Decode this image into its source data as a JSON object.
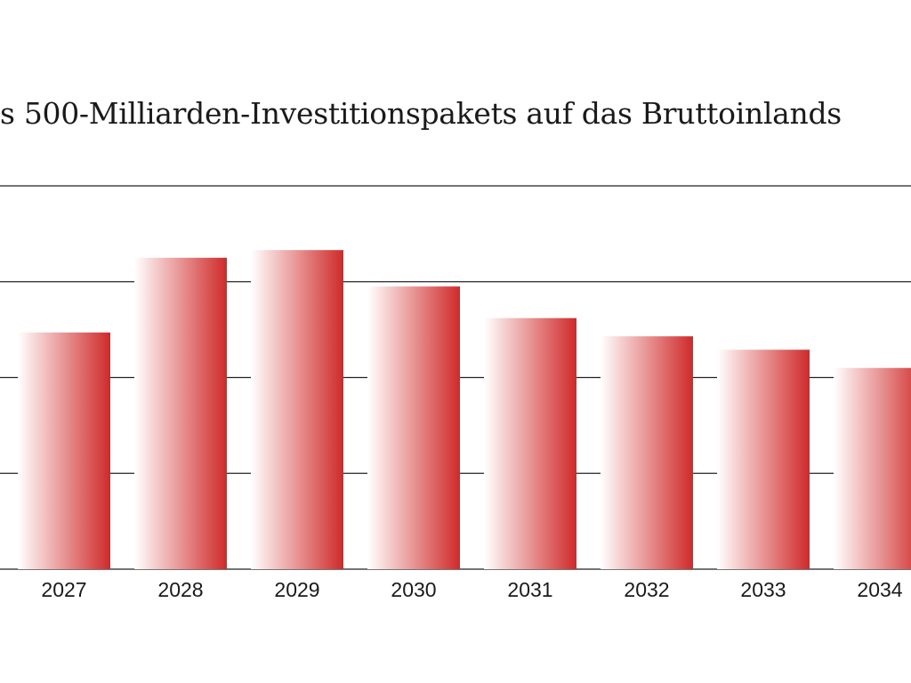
{
  "title": "s 500-Milliarden-Investitionspakets auf das Bruttoinlands",
  "chart_data": {
    "type": "bar",
    "title": "s 500-Milliarden-Investitionspakets auf das Bruttoinlands",
    "xlabel": "",
    "ylabel": "",
    "categories": [
      "2027",
      "2028",
      "2029",
      "2030",
      "2031",
      "2032",
      "2033",
      "2034"
    ],
    "values": [
      2.47,
      3.25,
      3.33,
      2.95,
      2.62,
      2.43,
      2.29,
      2.1
    ],
    "ylim": [
      0,
      4
    ],
    "gridlines": [
      1,
      2,
      3,
      4
    ],
    "grid": true,
    "legend": "none",
    "bar_gradient": [
      "#ffffff",
      "#cf2a2a"
    ],
    "axis_color": "#222222"
  }
}
